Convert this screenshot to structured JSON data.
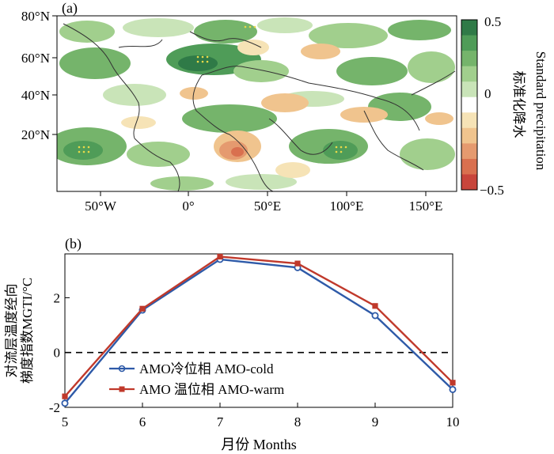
{
  "panel_a": {
    "label": "(a)",
    "lat_ticks": [
      "80°N",
      "60°N",
      "40°N",
      "20°N"
    ],
    "lon_ticks": [
      "50°W",
      "0°",
      "50°E",
      "100°E",
      "150°E"
    ],
    "colorbar": {
      "ticks": [
        "0.5",
        "0",
        "−0.5"
      ],
      "title_cn": "标准化降水",
      "title_en": "Standard precipitation",
      "colors": [
        "#2f7a47",
        "#4f9c58",
        "#75b46b",
        "#a1cf8d",
        "#c9e4b8",
        "#ffffff",
        "#f6e3b6",
        "#f0c48e",
        "#e59a6f",
        "#d9704f",
        "#c8453b"
      ]
    }
  },
  "chart_data": {
    "type": "line",
    "panel_label": "(b)",
    "x": [
      5,
      6,
      7,
      8,
      9,
      10
    ],
    "xlim": [
      5,
      10
    ],
    "ylim": [
      -2,
      3.6
    ],
    "x_tick_labels": [
      "5",
      "6",
      "7",
      "8",
      "9",
      "10"
    ],
    "y_tick_labels": [
      "-2",
      "0",
      "2"
    ],
    "y_ticks": [
      -2,
      0,
      2
    ],
    "xlabel": "月份 Months",
    "ylabel_line1": "对流层温度经向",
    "ylabel_line2": "梯度指数MGTI/°C",
    "reference_line": 0,
    "series": [
      {
        "name": "AMO冷位相 AMO-cold",
        "color": "#2e5aa8",
        "marker": "circle",
        "values": [
          -1.85,
          1.55,
          3.4,
          3.1,
          1.35,
          -1.35
        ]
      },
      {
        "name": "AMO 温位相 AMO-warm",
        "color": "#c0392b",
        "marker": "square",
        "values": [
          -1.6,
          1.6,
          3.5,
          3.25,
          1.7,
          -1.1
        ]
      }
    ]
  }
}
